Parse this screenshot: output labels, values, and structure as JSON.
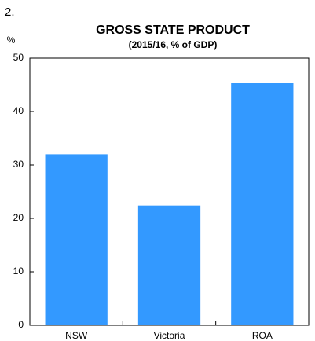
{
  "chart_data": {
    "type": "bar",
    "figure_label": "2.",
    "title": "GROSS STATE PRODUCT",
    "subtitle": "(2015/16, % of GDP)",
    "y_unit": "%",
    "categories": [
      "NSW",
      "Victoria",
      "ROA"
    ],
    "values": [
      32,
      22.4,
      45.4
    ],
    "color": "#3399ff",
    "ylim": [
      0,
      50
    ],
    "yticks": [
      0,
      10,
      20,
      30,
      40,
      50
    ],
    "grid": false
  }
}
